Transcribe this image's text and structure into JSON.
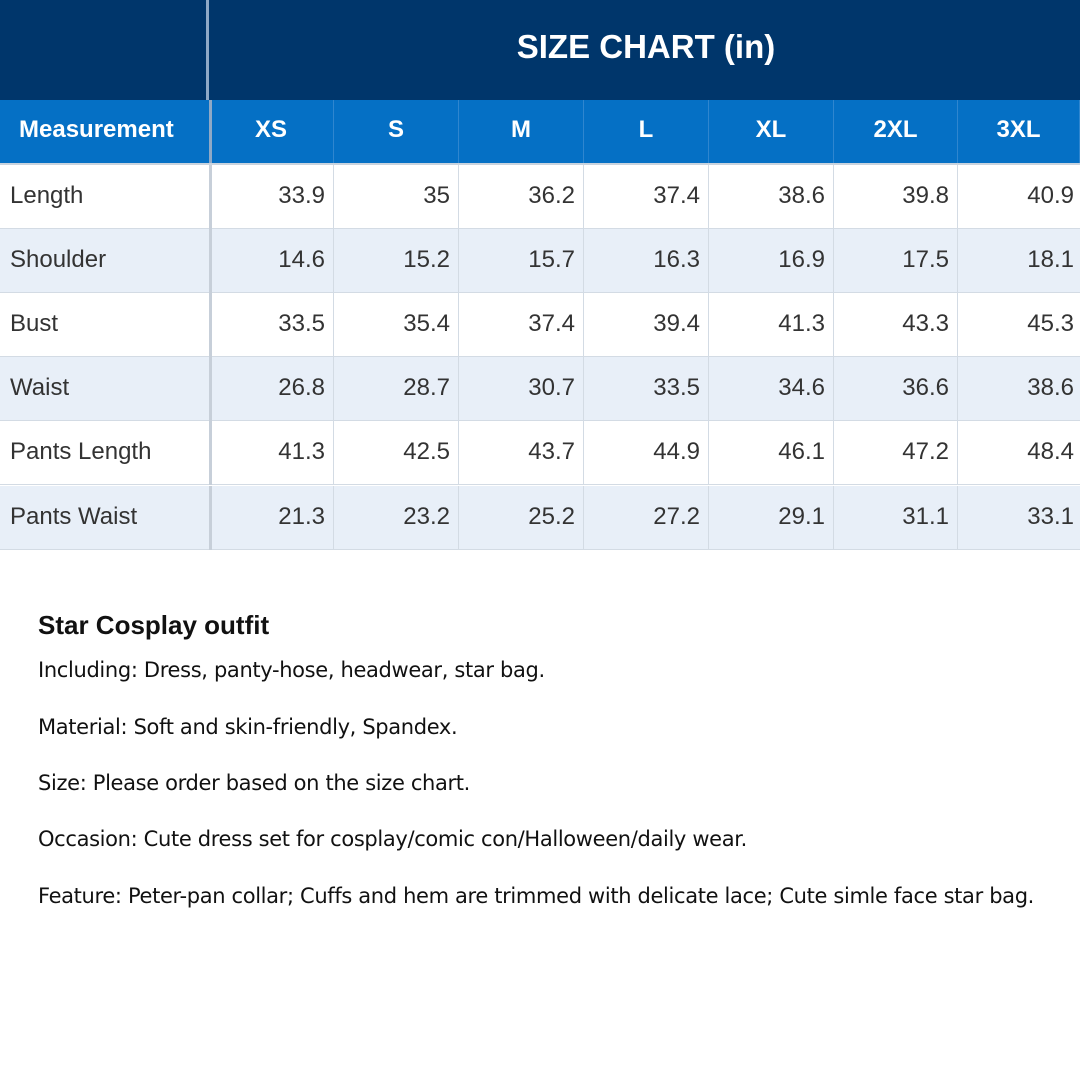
{
  "chart_title": "SIZE CHART (in)",
  "table": {
    "columns": [
      "Measurement",
      "XS",
      "S",
      "M",
      "L",
      "XL",
      "2XL",
      "3XL"
    ],
    "rows": [
      {
        "label": "Length",
        "values": [
          "33.9",
          "35",
          "36.2",
          "37.4",
          "38.6",
          "39.8",
          "40.9"
        ]
      },
      {
        "label": "Shoulder",
        "values": [
          "14.6",
          "15.2",
          "15.7",
          "16.3",
          "16.9",
          "17.5",
          "18.1"
        ]
      },
      {
        "label": "Bust",
        "values": [
          "33.5",
          "35.4",
          "37.4",
          "39.4",
          "41.3",
          "43.3",
          "45.3"
        ]
      },
      {
        "label": "Waist",
        "values": [
          "26.8",
          "28.7",
          "30.7",
          "33.5",
          "34.6",
          "36.6",
          "38.6"
        ]
      },
      {
        "label": "Pants Length",
        "values": [
          "41.3",
          "42.5",
          "43.7",
          "44.9",
          "46.1",
          "47.2",
          "48.4"
        ]
      },
      {
        "label": "Pants Waist",
        "values": [
          "21.3",
          "23.2",
          "25.2",
          "27.2",
          "29.1",
          "31.1",
          "33.1"
        ]
      }
    ]
  },
  "description": {
    "title": "Star Cosplay outfit",
    "lines": [
      "Including: Dress, panty-hose, headwear, star bag.",
      "Material: Soft and skin-friendly, Spandex.",
      "Size: Please order based on the size chart.",
      "Occasion: Cute dress set for cosplay/comic con/Halloween/daily wear.",
      "Feature: Peter-pan collar; Cuffs and hem are trimmed with delicate lace; Cute simle face star bag."
    ]
  },
  "colors": {
    "title_bg": "#00366b",
    "header_bg": "#0570c5",
    "row_alt_bg": "#e8eff8",
    "row_bg": "#ffffff"
  }
}
